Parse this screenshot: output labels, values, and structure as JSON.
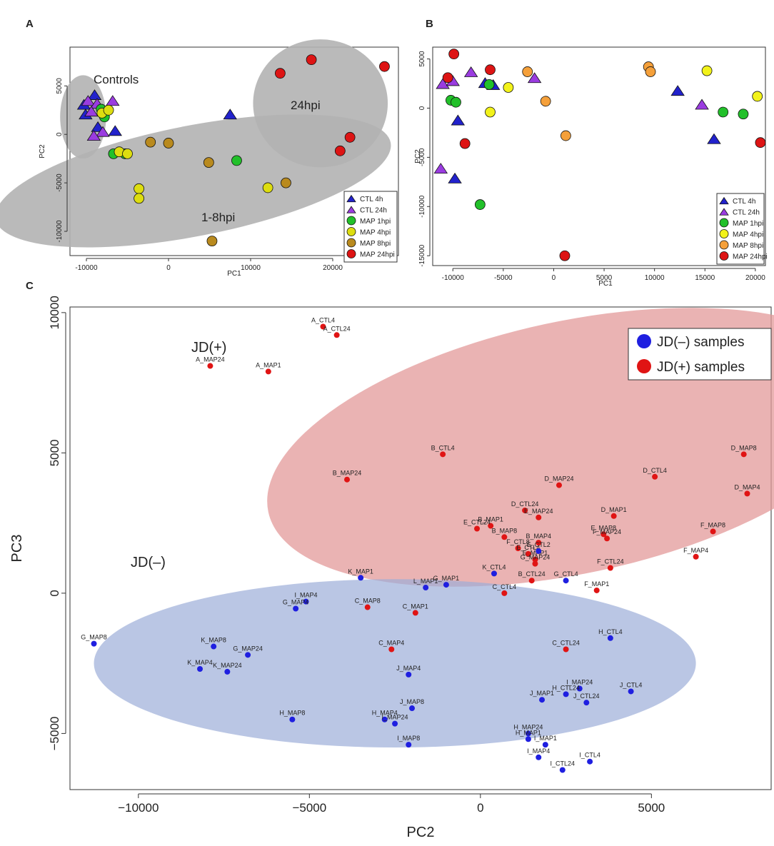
{
  "chart_data": [
    {
      "panel": "A",
      "type": "scatter",
      "xlabel": "PC1",
      "ylabel": "PC2",
      "xlim": [
        -12000,
        28000
      ],
      "ylim": [
        -12500,
        9000
      ],
      "xticks": [
        -10000,
        0,
        10000,
        20000
      ],
      "yticks": [
        -10000,
        -5000,
        0,
        5000
      ],
      "tick_labels_x": [
        "-10000",
        "0",
        "10000",
        "20000"
      ],
      "tick_labels_y": [
        "-10000",
        "-5000",
        "0",
        "5000"
      ],
      "legend": {
        "placement": "bottom-right",
        "entries": [
          "CTL 4h",
          "CTL 24h",
          "MAP 1hpi",
          "MAP 4hpi",
          "MAP 8hpi",
          "MAP 24hpi"
        ]
      },
      "ellipses": [
        {
          "label": "Controls",
          "cx": -10400,
          "cy": 1800,
          "rx": 2800,
          "ry": 4300,
          "angle": 0
        },
        {
          "label": "1-8hpi",
          "cx": 3000,
          "cy": -4800,
          "rx": 24500,
          "ry": 5700,
          "angle": -11
        },
        {
          "label": "24hpi",
          "cx": 18500,
          "cy": 3200,
          "rx": 8200,
          "ry": 6600,
          "angle": 0
        }
      ],
      "series": [
        {
          "name": "CTL 4h",
          "shape": "triangle",
          "color": "#2222cc",
          "points": [
            [
              -9000,
              4000
            ],
            [
              -10300,
              3000
            ],
            [
              -10100,
              2000
            ],
            [
              -8600,
              700
            ],
            [
              -6500,
              300
            ],
            [
              7500,
              2000
            ]
          ]
        },
        {
          "name": "CTL 24h",
          "shape": "triangle",
          "color": "#9a3ce0",
          "points": [
            [
              -9800,
              3400
            ],
            [
              -8700,
              3100
            ],
            [
              -6800,
              3400
            ],
            [
              -9400,
              2300
            ],
            [
              -8000,
              200
            ],
            [
              -9100,
              -200
            ]
          ]
        },
        {
          "name": "MAP 1hpi",
          "shape": "circle",
          "color": "#22c02a",
          "points": [
            [
              -8200,
              2600
            ],
            [
              -7800,
              1800
            ],
            [
              -6700,
              -2000
            ],
            [
              -5300,
              -2000
            ],
            [
              8300,
              -2700
            ]
          ]
        },
        {
          "name": "MAP 4hpi",
          "shape": "circle",
          "color": "#dddd10",
          "points": [
            [
              -8100,
              2200
            ],
            [
              -7300,
              2500
            ],
            [
              -6000,
              -1800
            ],
            [
              -5000,
              -2000
            ],
            [
              -3600,
              -5600
            ],
            [
              -3600,
              -6600
            ],
            [
              12100,
              -5500
            ]
          ]
        },
        {
          "name": "MAP 8hpi",
          "shape": "circle",
          "color": "#b98a1e",
          "points": [
            [
              -2200,
              -800
            ],
            [
              0,
              -900
            ],
            [
              4900,
              -2900
            ],
            [
              5300,
              -11000
            ],
            [
              14300,
              -5000
            ]
          ]
        },
        {
          "name": "MAP 24hpi",
          "shape": "circle",
          "color": "#dd1414",
          "points": [
            [
              13600,
              6300
            ],
            [
              17400,
              7700
            ],
            [
              26300,
              7000
            ],
            [
              22100,
              -300
            ],
            [
              20900,
              -1700
            ]
          ]
        }
      ]
    },
    {
      "panel": "B",
      "type": "scatter",
      "xlabel": "PC1",
      "ylabel": "PC2",
      "xlim": [
        -12000,
        21000
      ],
      "ylim": [
        -16000,
        6200
      ],
      "xticks": [
        -10000,
        -5000,
        0,
        5000,
        10000,
        15000,
        20000
      ],
      "yticks": [
        -15000,
        -10000,
        -5000,
        0,
        5000
      ],
      "tick_labels_x": [
        "-10000",
        "-5000",
        "0",
        "5000",
        "10000",
        "15000",
        "20000"
      ],
      "tick_labels_y": [
        "-15000",
        "-10000",
        "-5000",
        "0",
        "5000"
      ],
      "legend": {
        "placement": "bottom-right",
        "entries": [
          "CTL 4h",
          "CTL 24h",
          "MAP 1hpi",
          "MAP 4hpi",
          "MAP 8hpi",
          "MAP 24hpi"
        ]
      },
      "series": [
        {
          "name": "CTL 4h",
          "shape": "triangle",
          "color": "#2222cc",
          "points": [
            [
              -9500,
              -1300
            ],
            [
              -9800,
              -7200
            ],
            [
              -6800,
              2500
            ],
            [
              -6000,
              2300
            ],
            [
              12300,
              1700
            ],
            [
              15900,
              -3200
            ]
          ]
        },
        {
          "name": "CTL 24h",
          "shape": "triangle",
          "color": "#9a3ce0",
          "points": [
            [
              -11000,
              2400
            ],
            [
              -10000,
              2700
            ],
            [
              -8200,
              3600
            ],
            [
              -1900,
              3000
            ],
            [
              14700,
              300
            ],
            [
              -11200,
              -6200
            ]
          ]
        },
        {
          "name": "MAP 1hpi",
          "shape": "circle",
          "color": "#22c02a",
          "points": [
            [
              -6400,
              2400
            ],
            [
              -10200,
              800
            ],
            [
              -9700,
              600
            ],
            [
              -7300,
              -9800
            ],
            [
              16800,
              -400
            ],
            [
              18800,
              -600
            ]
          ]
        },
        {
          "name": "MAP 4hpi",
          "shape": "circle",
          "color": "#f2f21a",
          "points": [
            [
              -4500,
              2100
            ],
            [
              -6300,
              -400
            ],
            [
              15200,
              3800
            ],
            [
              20200,
              1200
            ]
          ]
        },
        {
          "name": "MAP 8hpi",
          "shape": "circle",
          "color": "#f5a03a",
          "points": [
            [
              -2600,
              3700
            ],
            [
              -800,
              700
            ],
            [
              1200,
              -2800
            ],
            [
              9400,
              4200
            ],
            [
              9600,
              3700
            ]
          ]
        },
        {
          "name": "MAP 24hpi",
          "shape": "circle",
          "color": "#dd1414",
          "points": [
            [
              -9900,
              5500
            ],
            [
              -10500,
              3100
            ],
            [
              -6300,
              3900
            ],
            [
              -8800,
              -3600
            ],
            [
              1100,
              -15000
            ],
            [
              20500,
              -3500
            ]
          ]
        }
      ]
    },
    {
      "panel": "C",
      "type": "scatter",
      "xlabel": "PC2",
      "ylabel": "PC3",
      "xlim": [
        -12000,
        8500
      ],
      "ylim": [
        -7000,
        10200
      ],
      "xticks": [
        -10000,
        -5000,
        0,
        5000
      ],
      "yticks": [
        -5000,
        0,
        5000,
        10000
      ],
      "tick_labels_x": [
        "−10000",
        "−5000",
        "0",
        "5000"
      ],
      "tick_labels_y": [
        "−5000",
        "0",
        "5000",
        "10000"
      ],
      "legend": {
        "placement": "top-right",
        "entries": [
          "JD(–) samples",
          "JD(+) samples"
        ]
      },
      "colors": {
        "neg": "#1f1fe0",
        "pos": "#e01414"
      },
      "ellipses": [
        {
          "label": "JD(+)",
          "color": "#e39a9a",
          "cx": 2700,
          "cy": 5200,
          "rx": 9100,
          "ry": 4500,
          "angle": -12
        },
        {
          "label": "JD(–)",
          "color": "#9daed8",
          "cx": -2500,
          "cy": -2500,
          "rx": 8800,
          "ry": 3000,
          "angle": 0
        }
      ],
      "points": [
        {
          "label": "A_CTL4",
          "x": -4600,
          "y": 9500,
          "group": "pos"
        },
        {
          "label": "A_CTL24",
          "x": -4200,
          "y": 9200,
          "group": "pos"
        },
        {
          "label": "A_MAP24",
          "x": -7900,
          "y": 8100,
          "group": "pos"
        },
        {
          "label": "A_MAP1",
          "x": -6200,
          "y": 7900,
          "group": "pos"
        },
        {
          "label": "B_CTL4",
          "x": -1100,
          "y": 4950,
          "group": "pos"
        },
        {
          "label": "B_MAP24",
          "x": -3900,
          "y": 4050,
          "group": "pos"
        },
        {
          "label": "D_MAP8",
          "x": 7700,
          "y": 4950,
          "group": "pos"
        },
        {
          "label": "D_CTL4",
          "x": 5100,
          "y": 4150,
          "group": "pos"
        },
        {
          "label": "D_MAP24",
          "x": 2300,
          "y": 3850,
          "group": "pos"
        },
        {
          "label": "D_MAP4",
          "x": 7800,
          "y": 3550,
          "group": "pos"
        },
        {
          "label": "D_CTL24",
          "x": 1300,
          "y": 2950,
          "group": "pos"
        },
        {
          "label": "E_MAP24",
          "x": 1700,
          "y": 2700,
          "group": "pos"
        },
        {
          "label": "D_MAP1",
          "x": 3900,
          "y": 2750,
          "group": "pos"
        },
        {
          "label": "B_MAP1",
          "x": 300,
          "y": 2400,
          "group": "pos"
        },
        {
          "label": "E_CTL24",
          "x": -100,
          "y": 2300,
          "group": "pos"
        },
        {
          "label": "B_MAP8",
          "x": 700,
          "y": 2000,
          "group": "pos"
        },
        {
          "label": "F_CTL8",
          "x": 1100,
          "y": 1600,
          "group": "pos"
        },
        {
          "label": "B_MAP4",
          "x": 1700,
          "y": 1800,
          "group": "pos"
        },
        {
          "label": "E_MAP8",
          "x": 3600,
          "y": 2100,
          "group": "pos"
        },
        {
          "label": "F_MAP24",
          "x": 3700,
          "y": 1950,
          "group": "pos"
        },
        {
          "label": "F_MAP8",
          "x": 6800,
          "y": 2200,
          "group": "pos"
        },
        {
          "label": "E_CTL4",
          "x": 1400,
          "y": 1400,
          "group": "pos"
        },
        {
          "label": "E_MAP1",
          "x": 1600,
          "y": 1200,
          "group": "pos"
        },
        {
          "label": "F_MAP4",
          "x": 6300,
          "y": 1300,
          "group": "pos"
        },
        {
          "label": "G_MAP24",
          "x": 1600,
          "y": 1050,
          "group": "pos"
        },
        {
          "label": "F_CTL24",
          "x": 3800,
          "y": 900,
          "group": "pos"
        },
        {
          "label": "B_CTL24",
          "x": 1500,
          "y": 450,
          "group": "pos"
        },
        {
          "label": "F_MAP1",
          "x": 3400,
          "y": 100,
          "group": "pos"
        },
        {
          "label": "C_CTL4",
          "x": 700,
          "y": 0,
          "group": "pos"
        },
        {
          "label": "C_MAP8",
          "x": -3300,
          "y": -500,
          "group": "pos"
        },
        {
          "label": "C_MAP1",
          "x": -1900,
          "y": -700,
          "group": "pos"
        },
        {
          "label": "C_MAP4",
          "x": -2600,
          "y": -2000,
          "group": "pos"
        },
        {
          "label": "C_CTL24",
          "x": 2500,
          "y": -2000,
          "group": "pos"
        },
        {
          "label": "E_CTL2",
          "x": 1700,
          "y": 1500,
          "group": "neg"
        },
        {
          "label": "G_MAP1",
          "x": -1000,
          "y": 300,
          "group": "neg"
        },
        {
          "label": "K_MAP1",
          "x": -3500,
          "y": 550,
          "group": "neg"
        },
        {
          "label": "L_MAP1",
          "x": -1600,
          "y": 200,
          "group": "neg"
        },
        {
          "label": "K_CTL4",
          "x": 400,
          "y": 700,
          "group": "neg"
        },
        {
          "label": "G_CTL4",
          "x": 2500,
          "y": 450,
          "group": "neg"
        },
        {
          "label": "I_MAP4",
          "x": -5100,
          "y": -300,
          "group": "neg"
        },
        {
          "label": "G_MAP4",
          "x": -5400,
          "y": -550,
          "group": "neg"
        },
        {
          "label": "G_MAP8",
          "x": -11300,
          "y": -1800,
          "group": "neg"
        },
        {
          "label": "K_MAP8",
          "x": -7800,
          "y": -1900,
          "group": "neg"
        },
        {
          "label": "G_MAP24",
          "x": -6800,
          "y": -2200,
          "group": "neg"
        },
        {
          "label": "K_MAP4",
          "x": -8200,
          "y": -2700,
          "group": "neg"
        },
        {
          "label": "K_MAP24",
          "x": -7400,
          "y": -2800,
          "group": "neg"
        },
        {
          "label": "H_CTL4",
          "x": 3800,
          "y": -1600,
          "group": "neg"
        },
        {
          "label": "J_MAP4",
          "x": -2100,
          "y": -2900,
          "group": "neg"
        },
        {
          "label": "J_CTL4",
          "x": 4400,
          "y": -3500,
          "group": "neg"
        },
        {
          "label": "I_MAP24",
          "x": 2900,
          "y": -3400,
          "group": "neg"
        },
        {
          "label": "H_CTL24",
          "x": 2500,
          "y": -3600,
          "group": "neg"
        },
        {
          "label": "J_CTL24",
          "x": 3100,
          "y": -3900,
          "group": "neg"
        },
        {
          "label": "J_MAP1",
          "x": 1800,
          "y": -3800,
          "group": "neg"
        },
        {
          "label": "J_MAP8",
          "x": -2000,
          "y": -4100,
          "group": "neg"
        },
        {
          "label": "H_MAP8",
          "x": -5500,
          "y": -4500,
          "group": "neg"
        },
        {
          "label": "H_MAP4",
          "x": -2800,
          "y": -4500,
          "group": "neg"
        },
        {
          "label": "I_MAP24",
          "x": -2500,
          "y": -4650,
          "group": "neg"
        },
        {
          "label": "I_MAP8",
          "x": -2100,
          "y": -5400,
          "group": "neg"
        },
        {
          "label": "H_MAP24",
          "x": 1400,
          "y": -5000,
          "group": "neg"
        },
        {
          "label": "H_MAP1",
          "x": 1400,
          "y": -5200,
          "group": "neg"
        },
        {
          "label": "I_MAP1",
          "x": 1900,
          "y": -5400,
          "group": "neg"
        },
        {
          "label": "I_MAP4",
          "x": 1700,
          "y": -5850,
          "group": "neg"
        },
        {
          "label": "I_CTL4",
          "x": 3200,
          "y": -6000,
          "group": "neg"
        },
        {
          "label": "I_CTL24",
          "x": 2400,
          "y": -6300,
          "group": "neg"
        }
      ]
    }
  ]
}
